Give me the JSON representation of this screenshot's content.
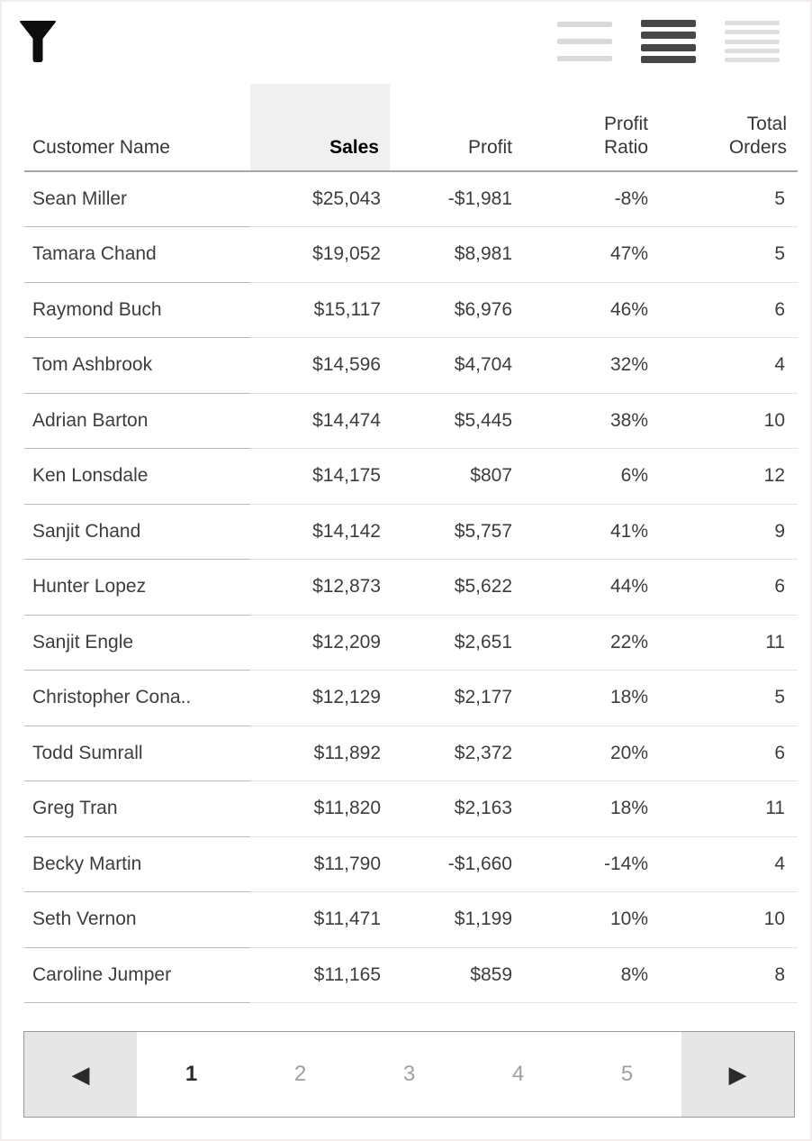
{
  "toolbar": {
    "filter": {
      "icon": "funnel-icon"
    },
    "view_toggles": [
      {
        "name": "row-size-short",
        "icon": "three-lines-icon",
        "lines": 3,
        "selected": false
      },
      {
        "name": "row-size-medium",
        "icon": "four-lines-icon",
        "lines": 4,
        "selected": true
      },
      {
        "name": "row-size-tall",
        "icon": "five-lines-icon",
        "lines": 5,
        "selected": false
      }
    ]
  },
  "table": {
    "columns": [
      {
        "label": "Customer Name",
        "align": "left",
        "highlighted": false
      },
      {
        "label": "Sales",
        "align": "right",
        "highlighted": true
      },
      {
        "label": "Profit",
        "align": "right",
        "highlighted": false
      },
      {
        "label": "Profit\nRatio",
        "align": "right",
        "highlighted": false
      },
      {
        "label": "Total\nOrders",
        "align": "right",
        "highlighted": false
      }
    ],
    "rows": [
      {
        "name": "Sean Miller",
        "sales": "$25,043",
        "profit": "-$1,981",
        "profit_ratio": "-8%",
        "total_orders": "5"
      },
      {
        "name": "Tamara Chand",
        "sales": "$19,052",
        "profit": "$8,981",
        "profit_ratio": "47%",
        "total_orders": "5"
      },
      {
        "name": "Raymond Buch",
        "sales": "$15,117",
        "profit": "$6,976",
        "profit_ratio": "46%",
        "total_orders": "6"
      },
      {
        "name": "Tom Ashbrook",
        "sales": "$14,596",
        "profit": "$4,704",
        "profit_ratio": "32%",
        "total_orders": "4"
      },
      {
        "name": "Adrian Barton",
        "sales": "$14,474",
        "profit": "$5,445",
        "profit_ratio": "38%",
        "total_orders": "10"
      },
      {
        "name": "Ken Lonsdale",
        "sales": "$14,175",
        "profit": "$807",
        "profit_ratio": "6%",
        "total_orders": "12"
      },
      {
        "name": "Sanjit Chand",
        "sales": "$14,142",
        "profit": "$5,757",
        "profit_ratio": "41%",
        "total_orders": "9"
      },
      {
        "name": "Hunter Lopez",
        "sales": "$12,873",
        "profit": "$5,622",
        "profit_ratio": "44%",
        "total_orders": "6"
      },
      {
        "name": "Sanjit Engle",
        "sales": "$12,209",
        "profit": "$2,651",
        "profit_ratio": "22%",
        "total_orders": "11"
      },
      {
        "name": "Christopher Cona..",
        "sales": "$12,129",
        "profit": "$2,177",
        "profit_ratio": "18%",
        "total_orders": "5"
      },
      {
        "name": "Todd Sumrall",
        "sales": "$11,892",
        "profit": "$2,372",
        "profit_ratio": "20%",
        "total_orders": "6"
      },
      {
        "name": "Greg Tran",
        "sales": "$11,820",
        "profit": "$2,163",
        "profit_ratio": "18%",
        "total_orders": "11"
      },
      {
        "name": "Becky Martin",
        "sales": "$11,790",
        "profit": "-$1,660",
        "profit_ratio": "-14%",
        "total_orders": "4"
      },
      {
        "name": "Seth Vernon",
        "sales": "$11,471",
        "profit": "$1,199",
        "profit_ratio": "10%",
        "total_orders": "10"
      },
      {
        "name": "Caroline Jumper",
        "sales": "$11,165",
        "profit": "$859",
        "profit_ratio": "8%",
        "total_orders": "8"
      }
    ]
  },
  "pagination": {
    "prev_label": "◀",
    "next_label": "▶",
    "pages": [
      "1",
      "2",
      "3",
      "4",
      "5"
    ],
    "current": "1"
  },
  "colors": {
    "sales_header_highlight": "#f0f0f0",
    "header_rule": "#a6a6a6",
    "divider_dark": "#b9b9b9",
    "divider_light": "#e4e4e4",
    "toggle_inactive": "#d9d9d9",
    "toggle_active": "#474747",
    "pagination_border": "#9a9a9a",
    "pagination_button_bg": "#e6e6e6",
    "text_primary": "#3d3d3d",
    "text_muted": "#a0a0a0"
  }
}
